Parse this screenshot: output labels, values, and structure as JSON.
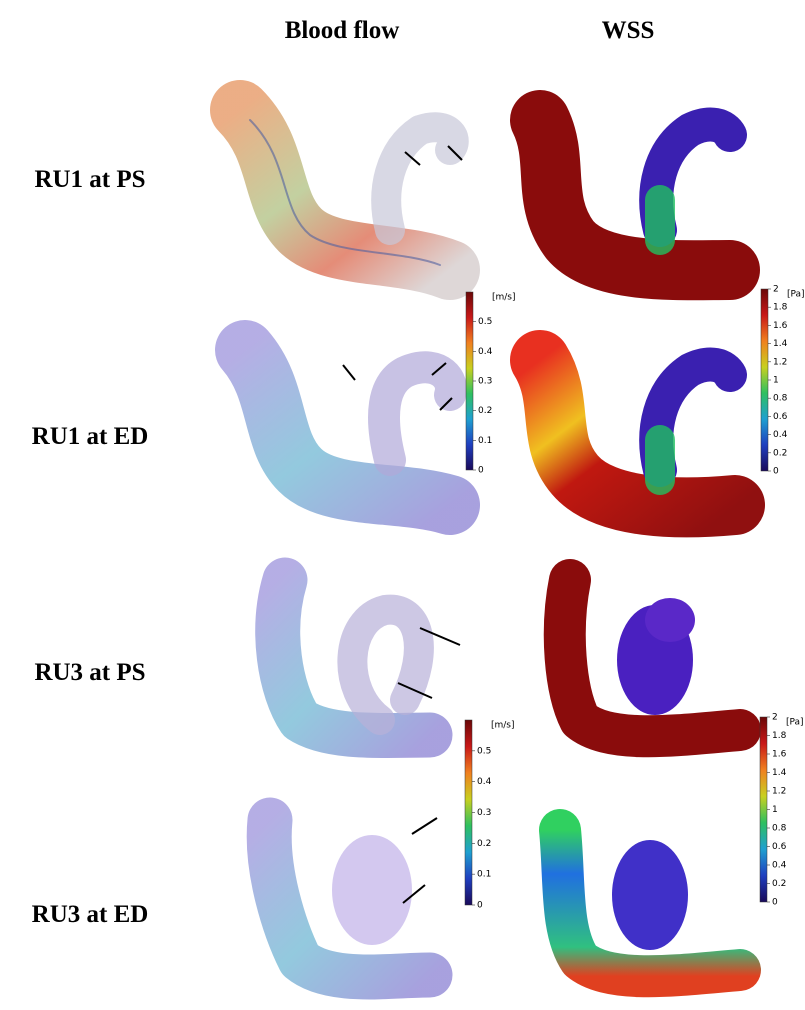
{
  "columns": [
    "Blood flow",
    "WSS"
  ],
  "rows": [
    "RU1 at PS",
    "RU1 at ED",
    "RU3 at PS",
    "RU3 at ED"
  ],
  "colorbars": [
    {
      "unit": "[m/s]",
      "range": [
        0,
        0.6
      ],
      "ticks": [
        0,
        0.1,
        0.2,
        0.3,
        0.4,
        0.5
      ],
      "colors": [
        "#1a0a5a",
        "#1f3fbf",
        "#1fa0d0",
        "#2fc060",
        "#c8d020",
        "#f08020",
        "#c81818",
        "#6a0808"
      ]
    },
    {
      "unit": "[Pa]",
      "range": [
        0,
        2
      ],
      "ticks": [
        0,
        0.2,
        0.4,
        0.6,
        0.8,
        1,
        1.2,
        1.4,
        1.6,
        1.8,
        2
      ],
      "colors": [
        "#1a0a5a",
        "#1f3fbf",
        "#1fa0d0",
        "#2fc060",
        "#c8d020",
        "#f08020",
        "#c81818",
        "#6a0808"
      ]
    },
    {
      "unit": "[m/s]",
      "range": [
        0,
        0.6
      ],
      "ticks": [
        0,
        0.1,
        0.2,
        0.3,
        0.4,
        0.5
      ],
      "colors": [
        "#1a0a5a",
        "#1f3fbf",
        "#1fa0d0",
        "#2fc060",
        "#c8d020",
        "#f08020",
        "#c81818",
        "#6a0808"
      ]
    },
    {
      "unit": "[Pa]",
      "range": [
        0,
        2
      ],
      "ticks": [
        0,
        0.2,
        0.4,
        0.6,
        0.8,
        1,
        1.2,
        1.4,
        1.6,
        1.8,
        2
      ],
      "colors": [
        "#1a0a5a",
        "#1f3fbf",
        "#1fa0d0",
        "#2fc060",
        "#c8d020",
        "#f08020",
        "#c81818",
        "#6a0808"
      ]
    }
  ]
}
